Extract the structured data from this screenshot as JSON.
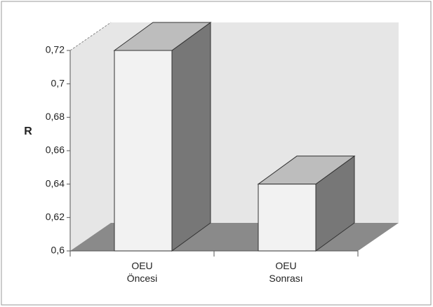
{
  "chart_data": {
    "type": "bar3d",
    "y_label": "R",
    "categories": [
      "OEU\nÖncesi",
      "OEU\nSonrası"
    ],
    "values": [
      0.72,
      0.64
    ],
    "ylim": [
      0.6,
      0.72
    ],
    "yticks": [
      {
        "value": 0.6,
        "label": "0,6"
      },
      {
        "value": 0.62,
        "label": "0,62"
      },
      {
        "value": 0.64,
        "label": "0,64"
      },
      {
        "value": 0.66,
        "label": "0,66"
      },
      {
        "value": 0.68,
        "label": "0,68"
      },
      {
        "value": 0.7,
        "label": "0,7"
      },
      {
        "value": 0.72,
        "label": "0,72"
      }
    ],
    "color": "#f2f2f2"
  }
}
